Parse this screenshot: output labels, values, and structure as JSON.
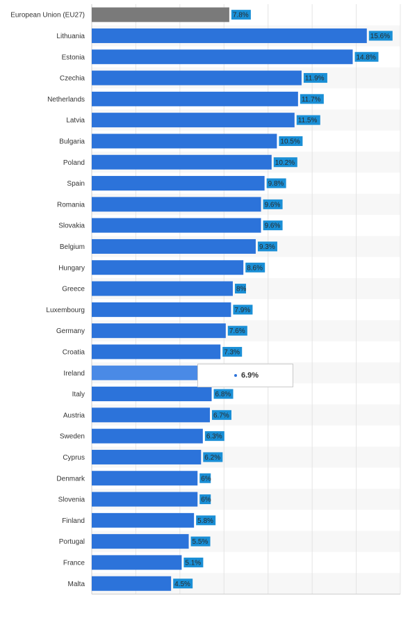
{
  "chart_data": {
    "type": "bar",
    "orientation": "horizontal",
    "categories": [
      "European Union (EU27)",
      "Lithuania",
      "Estonia",
      "Czechia",
      "Netherlands",
      "Latvia",
      "Bulgaria",
      "Poland",
      "Spain",
      "Romania",
      "Slovakia",
      "Belgium",
      "Hungary",
      "Greece",
      "Luxembourg",
      "Germany",
      "Croatia",
      "Ireland",
      "Italy",
      "Austria",
      "Sweden",
      "Cyprus",
      "Denmark",
      "Slovenia",
      "Finland",
      "Portugal",
      "France",
      "Malta"
    ],
    "values": [
      7.8,
      15.6,
      14.8,
      11.9,
      11.7,
      11.5,
      10.5,
      10.2,
      9.8,
      9.6,
      9.6,
      9.3,
      8.6,
      8,
      7.9,
      7.6,
      7.3,
      6.9,
      6.8,
      6.7,
      6.3,
      6.2,
      6,
      6,
      5.8,
      5.5,
      5.1,
      4.5
    ],
    "value_labels": [
      "7.8%",
      "15.6%",
      "14.8%",
      "11.9%",
      "11.7%",
      "11.5%",
      "10.5%",
      "10.2%",
      "9.8%",
      "9.6%",
      "9.6%",
      "9.3%",
      "8.6%",
      "8%",
      "7.9%",
      "7.6%",
      "7.3%",
      "",
      "6.8%",
      "6.7%",
      "6.3%",
      "6.2%",
      "6%",
      "6%",
      "5.8%",
      "5.5%",
      "5.1%",
      "4.5%"
    ],
    "xlim": [
      0,
      17.5
    ],
    "grid": true,
    "highlighted_category": "European Union (EU27)",
    "hovered_category": "Ireland",
    "colors": {
      "bar": "#2c73da",
      "bar_highlight": "#7a7a7a",
      "bar_hover": "#4a8ae6",
      "label_box": "#1a8fd6",
      "grid": "#e4e4e4",
      "band": "#f7f7f7"
    }
  },
  "tooltip": {
    "value": "6.9%"
  }
}
